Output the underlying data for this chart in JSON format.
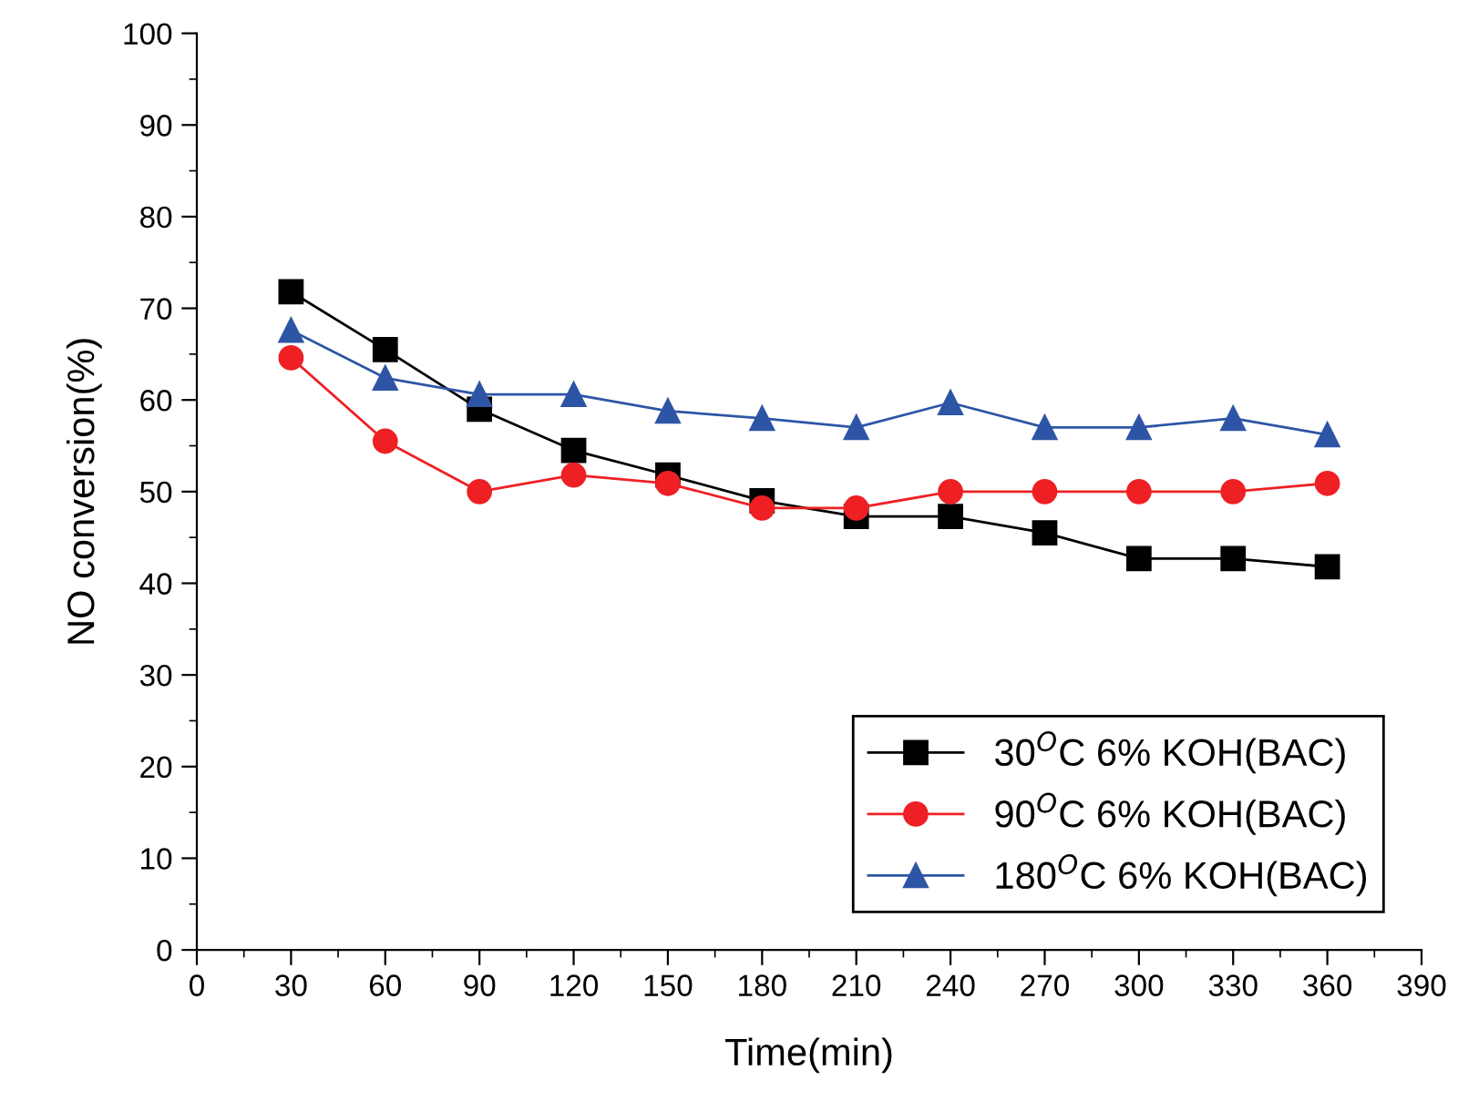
{
  "chart_data": {
    "type": "line",
    "xlabel": "Time(min)",
    "ylabel": "NO conversion(%)",
    "x": [
      30,
      60,
      90,
      120,
      150,
      180,
      210,
      240,
      270,
      300,
      330,
      360
    ],
    "series": [
      {
        "name": "30$^{O}$C 6% KOH(BAC)",
        "color": "#000000",
        "marker": "square",
        "values": [
          71.8,
          65.5,
          59,
          54.5,
          51.8,
          49,
          47.3,
          47.3,
          45.5,
          42.7,
          42.7,
          41.8
        ]
      },
      {
        "name": "90$^{O}$C 6% KOH(BAC)",
        "color": "#ee2024",
        "marker": "circle",
        "values": [
          64.6,
          55.5,
          50,
          51.8,
          50.9,
          48.2,
          48.2,
          50,
          50,
          50,
          50,
          50.9
        ]
      },
      {
        "name": "180$^{O}$C 6% KOH(BAC)",
        "color": "#2e55a5",
        "marker": "triangle",
        "values": [
          67.6,
          62.4,
          60.6,
          60.6,
          58.8,
          58,
          57,
          59.7,
          57,
          57,
          58,
          56.2
        ]
      }
    ],
    "xlim": [
      0,
      390
    ],
    "ylim": [
      0,
      100
    ],
    "xticks": [
      0,
      {
        "value": 15,
        "label": null
      },
      30,
      {
        "value": 45,
        "label": null
      },
      60,
      {
        "value": 75,
        "label": null
      },
      90,
      {
        "value": 105,
        "label": null
      },
      120,
      {
        "value": 135,
        "label": null
      },
      150,
      {
        "value": 165,
        "label": null
      },
      180,
      {
        "value": 195,
        "label": null
      },
      210,
      {
        "value": 225,
        "label": null
      },
      240,
      {
        "value": 255,
        "label": null
      },
      270,
      {
        "value": 285,
        "label": null
      },
      300,
      {
        "value": 315,
        "label": null
      },
      330,
      {
        "value": 345,
        "label": null
      },
      360,
      {
        "value": 375,
        "label": null
      },
      390
    ],
    "yticks": [
      0,
      {
        "value": 5,
        "label": null
      },
      10,
      {
        "value": 15,
        "label": null
      },
      20,
      {
        "value": 25,
        "label": null
      },
      30,
      {
        "value": 35,
        "label": null
      },
      40,
      {
        "value": 45,
        "label": null
      },
      50,
      {
        "value": 55,
        "label": null
      },
      60,
      {
        "value": 65,
        "label": null
      },
      70,
      {
        "value": 75,
        "label": null
      },
      80,
      {
        "value": 85,
        "label": null
      },
      90,
      {
        "value": 95,
        "label": null
      },
      100
    ],
    "grid": false,
    "legend": "bottom right",
    "line_style": "solid"
  }
}
